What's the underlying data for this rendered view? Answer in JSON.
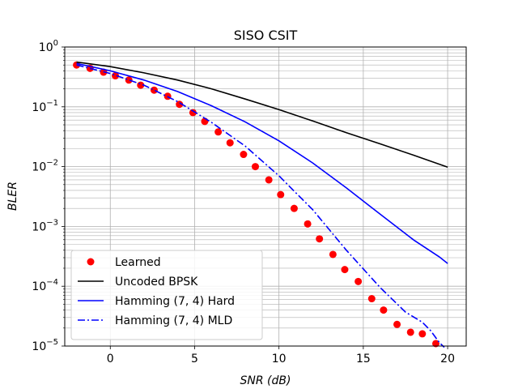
{
  "chart_data": {
    "type": "line",
    "title": "SISO CSIT",
    "xlabel": "SNR (dB)",
    "ylabel": "BLER",
    "y_scale": "log",
    "xlim": [
      -2.7,
      21.1
    ],
    "ylim": [
      1e-05,
      1
    ],
    "grid": true,
    "legend_position": "lower-left",
    "x_tick_labels": [
      "0",
      "5",
      "10",
      "15",
      "20"
    ],
    "x_ticks": [
      0,
      5,
      10,
      15,
      20
    ],
    "y_tick_labels": [
      {
        "base": "10",
        "exp": "0"
      },
      {
        "base": "10",
        "exp": "−1"
      },
      {
        "base": "10",
        "exp": "−2"
      },
      {
        "base": "10",
        "exp": "−3"
      },
      {
        "base": "10",
        "exp": "−4"
      },
      {
        "base": "10",
        "exp": "−5"
      }
    ],
    "y_ticks": [
      1,
      0.1,
      0.01,
      0.001,
      0.0001,
      1e-05
    ],
    "series": [
      {
        "name": "Learned",
        "style": "markers",
        "color": "#ff0000",
        "points": [
          [
            -2.0,
            0.5
          ],
          [
            -1.2,
            0.44
          ],
          [
            -0.4,
            0.38
          ],
          [
            0.3,
            0.33
          ],
          [
            1.1,
            0.28
          ],
          [
            1.8,
            0.23
          ],
          [
            2.6,
            0.19
          ],
          [
            3.4,
            0.15
          ],
          [
            4.1,
            0.11
          ],
          [
            4.9,
            0.08
          ],
          [
            5.6,
            0.057
          ],
          [
            6.4,
            0.038
          ],
          [
            7.1,
            0.025
          ],
          [
            7.9,
            0.016
          ],
          [
            8.6,
            0.01
          ],
          [
            9.4,
            0.006
          ],
          [
            10.1,
            0.0034
          ],
          [
            10.9,
            0.002
          ],
          [
            11.7,
            0.0011
          ],
          [
            12.4,
            0.00062
          ],
          [
            13.2,
            0.00034
          ],
          [
            13.9,
            0.00019
          ],
          [
            14.7,
            0.00012
          ],
          [
            15.5,
            6.2e-05
          ],
          [
            16.2,
            4e-05
          ],
          [
            17.0,
            2.3e-05
          ],
          [
            17.8,
            1.7e-05
          ],
          [
            18.5,
            1.6e-05
          ],
          [
            19.3,
            1.1e-05
          ]
        ]
      },
      {
        "name": "Uncoded BPSK",
        "style": "solid",
        "color": "#000000",
        "points": [
          [
            -2,
            0.56
          ],
          [
            0,
            0.47
          ],
          [
            2,
            0.37
          ],
          [
            4,
            0.28
          ],
          [
            6,
            0.2
          ],
          [
            8,
            0.135
          ],
          [
            10,
            0.09
          ],
          [
            12,
            0.058
          ],
          [
            14,
            0.037
          ],
          [
            16,
            0.024
          ],
          [
            18,
            0.0155
          ],
          [
            20,
            0.0098
          ]
        ]
      },
      {
        "name": "Hamming (7, 4) Hard",
        "style": "solid",
        "color": "#0000ff",
        "points": [
          [
            -2,
            0.53
          ],
          [
            0,
            0.4
          ],
          [
            2,
            0.28
          ],
          [
            4,
            0.18
          ],
          [
            6,
            0.104
          ],
          [
            8,
            0.056
          ],
          [
            10,
            0.027
          ],
          [
            12,
            0.0115
          ],
          [
            14,
            0.0044
          ],
          [
            16,
            0.0016
          ],
          [
            18,
            0.00059
          ],
          [
            19.5,
            0.00031
          ],
          [
            20,
            0.00024
          ]
        ]
      },
      {
        "name": "Hamming (7, 4) MLD",
        "style": "dashdot",
        "color": "#0000ff",
        "points": [
          [
            -2,
            0.5
          ],
          [
            0,
            0.36
          ],
          [
            2,
            0.23
          ],
          [
            4,
            0.122
          ],
          [
            6,
            0.055
          ],
          [
            8,
            0.022
          ],
          [
            10,
            0.007
          ],
          [
            12,
            0.0019
          ],
          [
            14,
            0.0004
          ],
          [
            16,
            9.5e-05
          ],
          [
            17.5,
            3.7e-05
          ],
          [
            18.5,
            2.5e-05
          ],
          [
            19.0,
            1.8e-05
          ],
          [
            19.5,
            1.15e-05
          ],
          [
            19.8,
            9.5e-06
          ]
        ]
      }
    ]
  }
}
